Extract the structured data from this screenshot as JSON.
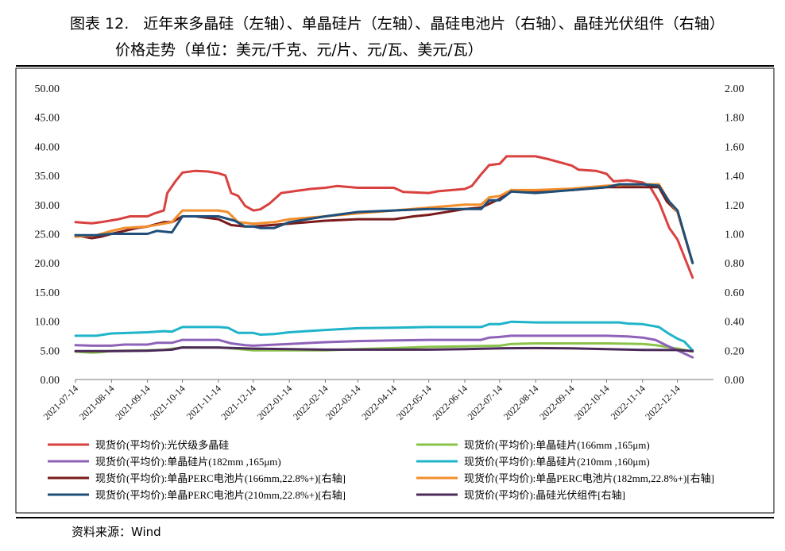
{
  "title": {
    "number": "图表 12.",
    "line1": "近年来多晶硅（左轴）、单晶硅片（左轴）、晶硅电池片（右轴）、晶硅光伏组件（右轴）",
    "line2": "价格走势（单位：美元/千克、元/片、元/瓦、美元/瓦）"
  },
  "source": "资料来源：Wind",
  "chart_data": {
    "type": "line",
    "left_axis": {
      "range": [
        0,
        50
      ],
      "ticks": [
        "0.00",
        "5.00",
        "10.00",
        "15.00",
        "20.00",
        "25.00",
        "30.00",
        "35.00",
        "40.00",
        "45.00",
        "50.00"
      ]
    },
    "right_axis": {
      "range": [
        0,
        2
      ],
      "ticks": [
        "0.00",
        "0.20",
        "0.40",
        "0.60",
        "0.80",
        "1.00",
        "1.20",
        "1.40",
        "1.60",
        "1.80",
        "2.00"
      ]
    },
    "x_range": [
      "2021-07-14",
      "2023-01-14"
    ],
    "x_ticks": [
      "2021-07-14",
      "2021-08-14",
      "2021-09-14",
      "2021-10-14",
      "2021-11-14",
      "2021-12-14",
      "2022-01-14",
      "2022-02-14",
      "2022-03-14",
      "2022-04-14",
      "2022-05-14",
      "2022-06-14",
      "2022-07-14",
      "2022-08-14",
      "2022-09-14",
      "2022-10-14",
      "2022-11-14",
      "2022-12-14"
    ],
    "grid": false,
    "legend_position": "bottom",
    "series": [
      {
        "name": "现货价(平均价):光伏级多晶硅",
        "axis": "left",
        "color": "#d9413f",
        "points": [
          [
            "2021-07-14",
            27.0
          ],
          [
            "2021-07-28",
            26.8
          ],
          [
            "2021-08-05",
            27.0
          ],
          [
            "2021-08-20",
            27.5
          ],
          [
            "2021-08-30",
            28.0
          ],
          [
            "2021-09-14",
            28.0
          ],
          [
            "2021-09-20",
            28.5
          ],
          [
            "2021-09-28",
            29.0
          ],
          [
            "2021-10-01",
            32.0
          ],
          [
            "2021-10-08",
            34.0
          ],
          [
            "2021-10-14",
            35.5
          ],
          [
            "2021-10-25",
            35.8
          ],
          [
            "2021-11-05",
            35.7
          ],
          [
            "2021-11-14",
            35.4
          ],
          [
            "2021-11-20",
            35.0
          ],
          [
            "2021-11-25",
            32.0
          ],
          [
            "2021-12-01",
            31.5
          ],
          [
            "2021-12-07",
            29.8
          ],
          [
            "2021-12-14",
            29.0
          ],
          [
            "2021-12-20",
            29.2
          ],
          [
            "2021-12-28",
            30.2
          ],
          [
            "2022-01-07",
            32.0
          ],
          [
            "2022-01-14",
            32.2
          ],
          [
            "2022-02-01",
            32.7
          ],
          [
            "2022-02-14",
            32.9
          ],
          [
            "2022-02-24",
            33.2
          ],
          [
            "2022-03-14",
            32.9
          ],
          [
            "2022-04-14",
            32.9
          ],
          [
            "2022-04-22",
            32.2
          ],
          [
            "2022-05-14",
            32.0
          ],
          [
            "2022-05-22",
            32.3
          ],
          [
            "2022-06-14",
            32.7
          ],
          [
            "2022-06-20",
            33.2
          ],
          [
            "2022-06-28",
            35.2
          ],
          [
            "2022-07-05",
            36.8
          ],
          [
            "2022-07-14",
            37.0
          ],
          [
            "2022-07-20",
            38.3
          ],
          [
            "2022-08-14",
            38.3
          ],
          [
            "2022-08-25",
            37.8
          ],
          [
            "2022-09-14",
            36.7
          ],
          [
            "2022-09-20",
            36.0
          ],
          [
            "2022-10-05",
            35.8
          ],
          [
            "2022-10-14",
            35.3
          ],
          [
            "2022-10-20",
            34.0
          ],
          [
            "2022-11-01",
            34.2
          ],
          [
            "2022-11-14",
            33.8
          ],
          [
            "2022-11-20",
            33.2
          ],
          [
            "2022-11-28",
            30.5
          ],
          [
            "2022-12-07",
            26.0
          ],
          [
            "2022-12-14",
            24.0
          ],
          [
            "2022-12-21",
            20.5
          ],
          [
            "2022-12-27",
            17.5
          ]
        ]
      },
      {
        "name": "现货价(平均价):单晶硅片(166mm ,165μm)",
        "axis": "left",
        "color": "#8bc34a",
        "points": [
          [
            "2021-07-14",
            4.8
          ],
          [
            "2021-07-28",
            4.6
          ],
          [
            "2021-08-05",
            4.7
          ],
          [
            "2021-08-14",
            4.9
          ],
          [
            "2021-09-14",
            5.0
          ],
          [
            "2021-09-28",
            5.1
          ],
          [
            "2021-10-14",
            5.5
          ],
          [
            "2021-11-14",
            5.5
          ],
          [
            "2021-11-28",
            5.3
          ],
          [
            "2021-12-14",
            5.0
          ],
          [
            "2022-01-14",
            5.0
          ],
          [
            "2022-02-14",
            5.0
          ],
          [
            "2022-03-14",
            5.2
          ],
          [
            "2022-04-14",
            5.4
          ],
          [
            "2022-05-14",
            5.6
          ],
          [
            "2022-06-14",
            5.7
          ],
          [
            "2022-07-14",
            5.8
          ],
          [
            "2022-07-24",
            6.1
          ],
          [
            "2022-08-14",
            6.2
          ],
          [
            "2022-09-14",
            6.2
          ],
          [
            "2022-10-14",
            6.2
          ],
          [
            "2022-11-14",
            6.1
          ],
          [
            "2022-11-25",
            5.9
          ],
          [
            "2022-12-14",
            5.3
          ],
          [
            "2022-12-27",
            4.8
          ]
        ]
      },
      {
        "name": "现货价(平均价):单晶硅片(182mm ,165μm)",
        "axis": "left",
        "color": "#8e62b8",
        "points": [
          [
            "2021-07-14",
            5.9
          ],
          [
            "2021-07-28",
            5.8
          ],
          [
            "2021-08-14",
            5.8
          ],
          [
            "2021-08-25",
            6.0
          ],
          [
            "2021-09-14",
            6.0
          ],
          [
            "2021-09-22",
            6.3
          ],
          [
            "2021-10-05",
            6.3
          ],
          [
            "2021-10-14",
            6.8
          ],
          [
            "2021-11-14",
            6.8
          ],
          [
            "2021-11-25",
            6.2
          ],
          [
            "2021-12-07",
            5.9
          ],
          [
            "2021-12-14",
            5.8
          ],
          [
            "2022-01-14",
            6.1
          ],
          [
            "2022-02-14",
            6.4
          ],
          [
            "2022-03-14",
            6.6
          ],
          [
            "2022-04-14",
            6.7
          ],
          [
            "2022-05-14",
            6.8
          ],
          [
            "2022-06-14",
            6.8
          ],
          [
            "2022-06-28",
            6.8
          ],
          [
            "2022-07-05",
            7.2
          ],
          [
            "2022-07-14",
            7.3
          ],
          [
            "2022-07-24",
            7.5
          ],
          [
            "2022-08-14",
            7.5
          ],
          [
            "2022-09-14",
            7.5
          ],
          [
            "2022-10-14",
            7.5
          ],
          [
            "2022-11-01",
            7.4
          ],
          [
            "2022-11-14",
            7.2
          ],
          [
            "2022-11-25",
            6.8
          ],
          [
            "2022-12-05",
            5.8
          ],
          [
            "2022-12-14",
            5.0
          ],
          [
            "2022-12-27",
            3.8
          ]
        ]
      },
      {
        "name": "现货价(平均价):单晶硅片(210mm ,160μm)",
        "axis": "left",
        "color": "#1fb4c9",
        "points": [
          [
            "2021-07-14",
            7.5
          ],
          [
            "2021-08-01",
            7.5
          ],
          [
            "2021-08-14",
            7.9
          ],
          [
            "2021-09-14",
            8.1
          ],
          [
            "2021-09-28",
            8.3
          ],
          [
            "2021-10-05",
            8.2
          ],
          [
            "2021-10-14",
            9.0
          ],
          [
            "2021-11-14",
            9.0
          ],
          [
            "2021-11-22",
            8.9
          ],
          [
            "2021-12-01",
            8.0
          ],
          [
            "2021-12-14",
            8.0
          ],
          [
            "2021-12-20",
            7.7
          ],
          [
            "2022-01-01",
            7.8
          ],
          [
            "2022-01-14",
            8.1
          ],
          [
            "2022-02-14",
            8.5
          ],
          [
            "2022-03-14",
            8.8
          ],
          [
            "2022-04-14",
            8.9
          ],
          [
            "2022-05-14",
            9.0
          ],
          [
            "2022-06-14",
            9.0
          ],
          [
            "2022-06-28",
            9.0
          ],
          [
            "2022-07-05",
            9.5
          ],
          [
            "2022-07-14",
            9.5
          ],
          [
            "2022-07-24",
            9.9
          ],
          [
            "2022-08-14",
            9.8
          ],
          [
            "2022-09-14",
            9.8
          ],
          [
            "2022-10-14",
            9.8
          ],
          [
            "2022-10-25",
            9.8
          ],
          [
            "2022-11-01",
            9.6
          ],
          [
            "2022-11-14",
            9.5
          ],
          [
            "2022-11-28",
            9.0
          ],
          [
            "2022-12-07",
            7.8
          ],
          [
            "2022-12-14",
            7.0
          ],
          [
            "2022-12-20",
            6.5
          ],
          [
            "2022-12-27",
            5.0
          ]
        ]
      },
      {
        "name": "现货价(平均价):单晶PERC电池片(166mm,22.8%+)[右轴]",
        "axis": "right",
        "color": "#7a1a1a",
        "points": [
          [
            "2021-07-14",
            0.99
          ],
          [
            "2021-07-28",
            0.97
          ],
          [
            "2021-08-05",
            0.98
          ],
          [
            "2021-08-14",
            1.0
          ],
          [
            "2021-09-05",
            1.04
          ],
          [
            "2021-09-14",
            1.05
          ],
          [
            "2021-09-28",
            1.08
          ],
          [
            "2021-10-05",
            1.08
          ],
          [
            "2021-10-14",
            1.12
          ],
          [
            "2021-10-25",
            1.12
          ],
          [
            "2021-11-14",
            1.1
          ],
          [
            "2021-11-25",
            1.06
          ],
          [
            "2021-12-07",
            1.05
          ],
          [
            "2021-12-14",
            1.05
          ],
          [
            "2022-01-14",
            1.07
          ],
          [
            "2022-02-14",
            1.09
          ],
          [
            "2022-03-14",
            1.1
          ],
          [
            "2022-04-14",
            1.1
          ],
          [
            "2022-05-01",
            1.12
          ],
          [
            "2022-05-14",
            1.13
          ],
          [
            "2022-06-14",
            1.17
          ],
          [
            "2022-06-28",
            1.18
          ],
          [
            "2022-07-14",
            1.24
          ],
          [
            "2022-07-24",
            1.3
          ],
          [
            "2022-08-14",
            1.29
          ],
          [
            "2022-09-14",
            1.3
          ],
          [
            "2022-10-14",
            1.32
          ],
          [
            "2022-11-14",
            1.32
          ],
          [
            "2022-11-28",
            1.32
          ],
          [
            "2022-12-05",
            1.22
          ],
          [
            "2022-12-14",
            1.15
          ],
          [
            "2022-12-27",
            0.8
          ]
        ]
      },
      {
        "name": "现货价(平均价):单晶PERC电池片(182mm,22.8%+)[右轴]",
        "axis": "right",
        "color": "#f28e2b",
        "points": [
          [
            "2021-07-14",
            0.98
          ],
          [
            "2021-08-01",
            0.99
          ],
          [
            "2021-08-14",
            1.02
          ],
          [
            "2021-08-25",
            1.04
          ],
          [
            "2021-09-14",
            1.05
          ],
          [
            "2021-09-28",
            1.07
          ],
          [
            "2021-10-05",
            1.08
          ],
          [
            "2021-10-14",
            1.16
          ],
          [
            "2021-11-14",
            1.16
          ],
          [
            "2021-11-22",
            1.15
          ],
          [
            "2021-12-01",
            1.08
          ],
          [
            "2021-12-14",
            1.07
          ],
          [
            "2022-01-01",
            1.08
          ],
          [
            "2022-01-14",
            1.1
          ],
          [
            "2022-02-14",
            1.12
          ],
          [
            "2022-03-14",
            1.14
          ],
          [
            "2022-04-14",
            1.16
          ],
          [
            "2022-05-14",
            1.18
          ],
          [
            "2022-06-14",
            1.2
          ],
          [
            "2022-06-28",
            1.2
          ],
          [
            "2022-07-05",
            1.25
          ],
          [
            "2022-07-14",
            1.26
          ],
          [
            "2022-07-24",
            1.3
          ],
          [
            "2022-08-14",
            1.3
          ],
          [
            "2022-09-14",
            1.31
          ],
          [
            "2022-10-14",
            1.33
          ],
          [
            "2022-11-14",
            1.34
          ],
          [
            "2022-11-28",
            1.34
          ],
          [
            "2022-12-07",
            1.22
          ],
          [
            "2022-12-14",
            1.15
          ],
          [
            "2022-12-27",
            0.8
          ]
        ]
      },
      {
        "name": "现货价(平均价):单晶PERC电池片(210mm,22.8%+)[右轴]",
        "axis": "right",
        "color": "#1f4e79",
        "points": [
          [
            "2021-07-14",
            0.99
          ],
          [
            "2021-08-01",
            0.99
          ],
          [
            "2021-08-14",
            1.0
          ],
          [
            "2021-09-14",
            1.0
          ],
          [
            "2021-09-22",
            1.02
          ],
          [
            "2021-10-05",
            1.01
          ],
          [
            "2021-10-14",
            1.12
          ],
          [
            "2021-11-14",
            1.12
          ],
          [
            "2021-11-28",
            1.09
          ],
          [
            "2021-12-07",
            1.05
          ],
          [
            "2021-12-14",
            1.05
          ],
          [
            "2021-12-20",
            1.04
          ],
          [
            "2022-01-01",
            1.04
          ],
          [
            "2022-01-14",
            1.08
          ],
          [
            "2022-02-14",
            1.12
          ],
          [
            "2022-03-14",
            1.15
          ],
          [
            "2022-04-14",
            1.16
          ],
          [
            "2022-05-14",
            1.17
          ],
          [
            "2022-06-14",
            1.17
          ],
          [
            "2022-06-28",
            1.17
          ],
          [
            "2022-07-05",
            1.23
          ],
          [
            "2022-07-14",
            1.23
          ],
          [
            "2022-07-24",
            1.29
          ],
          [
            "2022-08-14",
            1.28
          ],
          [
            "2022-09-14",
            1.3
          ],
          [
            "2022-10-14",
            1.32
          ],
          [
            "2022-10-25",
            1.34
          ],
          [
            "2022-11-14",
            1.34
          ],
          [
            "2022-11-28",
            1.33
          ],
          [
            "2022-12-07",
            1.22
          ],
          [
            "2022-12-14",
            1.16
          ],
          [
            "2022-12-27",
            0.8
          ]
        ]
      },
      {
        "name": "现货价(平均价):晶硅光伏组件[右轴]",
        "axis": "right",
        "color": "#4b2a5a",
        "points": [
          [
            "2021-07-14",
            0.195
          ],
          [
            "2021-08-14",
            0.195
          ],
          [
            "2021-09-14",
            0.198
          ],
          [
            "2021-10-05",
            0.205
          ],
          [
            "2021-10-14",
            0.22
          ],
          [
            "2021-11-14",
            0.219
          ],
          [
            "2021-12-14",
            0.212
          ],
          [
            "2022-01-14",
            0.208
          ],
          [
            "2022-02-14",
            0.205
          ],
          [
            "2022-03-14",
            0.205
          ],
          [
            "2022-04-14",
            0.205
          ],
          [
            "2022-05-14",
            0.205
          ],
          [
            "2022-06-14",
            0.208
          ],
          [
            "2022-07-14",
            0.214
          ],
          [
            "2022-08-14",
            0.216
          ],
          [
            "2022-09-14",
            0.214
          ],
          [
            "2022-10-14",
            0.208
          ],
          [
            "2022-11-14",
            0.203
          ],
          [
            "2022-12-14",
            0.202
          ],
          [
            "2022-12-27",
            0.195
          ]
        ]
      }
    ]
  }
}
